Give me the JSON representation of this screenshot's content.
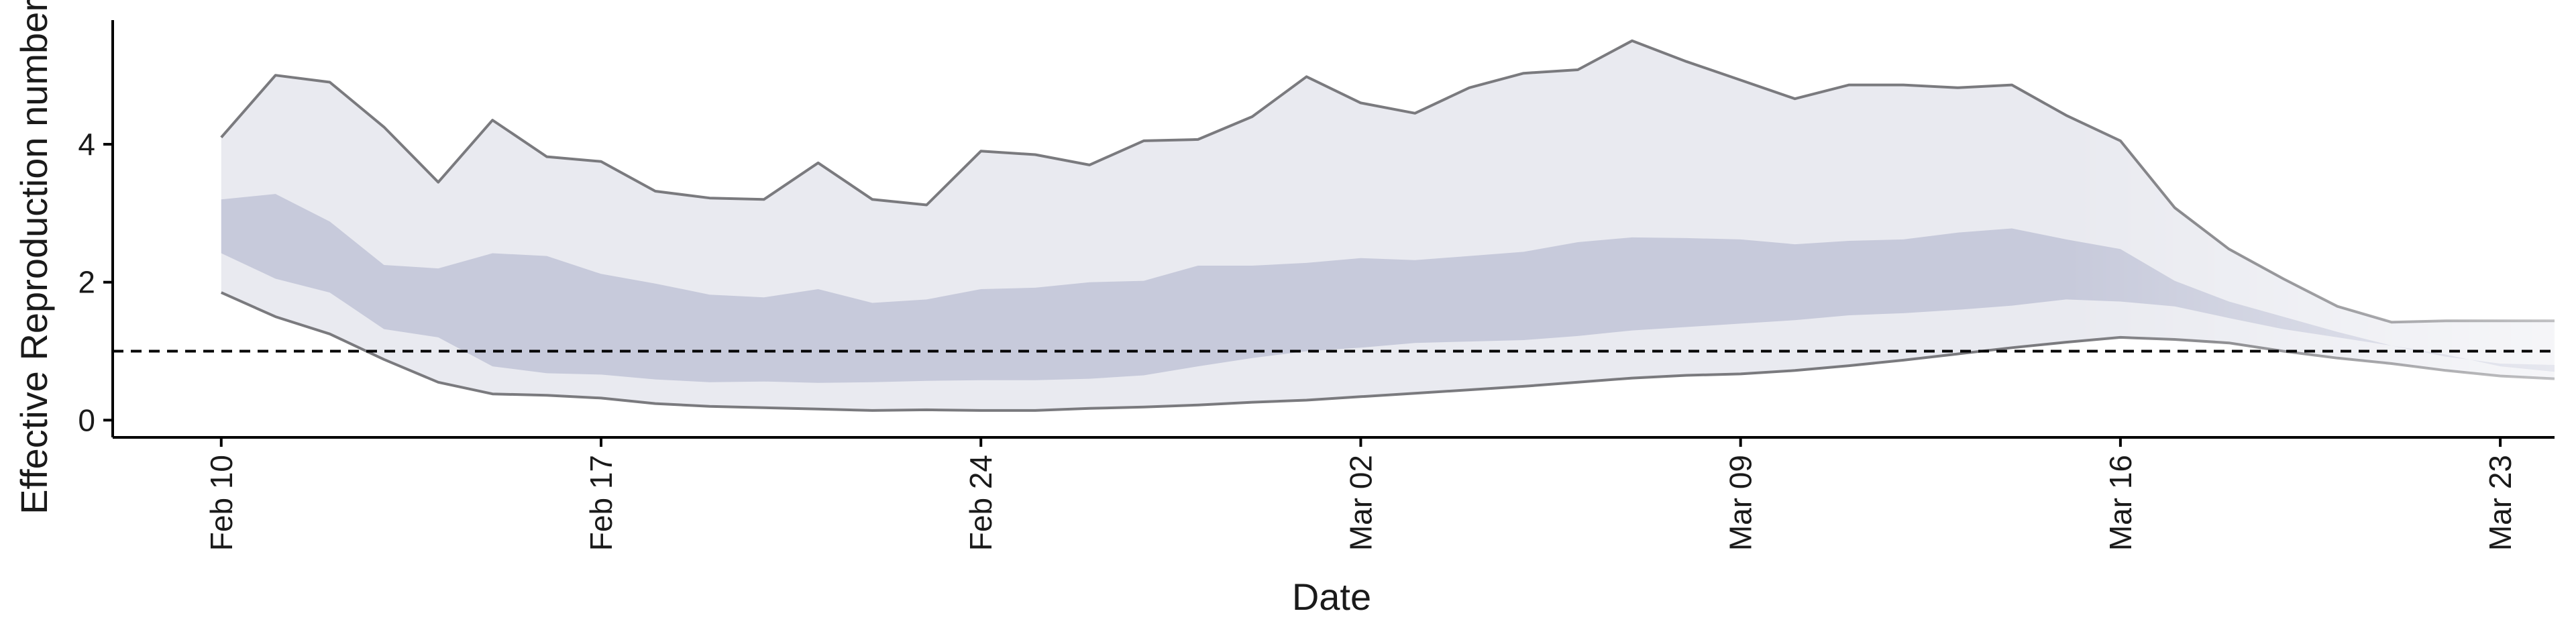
{
  "chart_data": {
    "type": "area",
    "xlabel": "Date",
    "ylabel": "Effective Reproduction number",
    "x_ticks": [
      "Feb 10",
      "Feb 17",
      "Feb 24",
      "Mar 02",
      "Mar 09",
      "Mar 16",
      "Mar 23"
    ],
    "y_ticks": [
      "0",
      "2",
      "4"
    ],
    "xlim": [
      "2020-02-08",
      "2020-03-24"
    ],
    "ylim": [
      -0.25,
      5.8
    ],
    "reference_line": 1,
    "start_date": "2020-02-10",
    "band_colors": {
      "outer": "#e9eaf0",
      "inner": "#c7cadb",
      "line": "#7a7a7e"
    },
    "series": [
      {
        "name": "lower_90",
        "values": [
          1.85,
          1.5,
          1.25,
          0.88,
          0.55,
          0.38,
          0.36,
          0.32,
          0.24,
          0.2,
          0.18,
          0.16,
          0.14,
          0.15,
          0.14,
          0.14,
          0.17,
          0.19,
          0.22,
          0.26,
          0.29,
          0.34,
          0.39,
          0.44,
          0.49,
          0.55,
          0.61,
          0.65,
          0.67,
          0.72,
          0.79,
          0.87,
          0.96,
          1.05,
          1.13,
          1.2,
          1.17,
          1.12,
          1.0,
          0.9,
          0.82,
          0.72,
          0.64,
          0.6
        ]
      },
      {
        "name": "lower_50",
        "values": [
          2.42,
          2.05,
          1.85,
          1.32,
          1.2,
          0.78,
          0.68,
          0.66,
          0.59,
          0.55,
          0.56,
          0.54,
          0.55,
          0.57,
          0.58,
          0.58,
          0.6,
          0.65,
          0.78,
          0.9,
          1.0,
          1.05,
          1.12,
          1.14,
          1.16,
          1.22,
          1.3,
          1.35,
          1.4,
          1.45,
          1.52,
          1.55,
          1.6,
          1.66,
          1.75,
          1.72,
          1.65,
          1.48,
          1.32,
          1.2,
          1.08,
          0.95,
          0.78,
          0.7
        ]
      },
      {
        "name": "upper_50",
        "values": [
          3.2,
          3.28,
          2.88,
          2.25,
          2.2,
          2.42,
          2.38,
          2.12,
          1.98,
          1.82,
          1.78,
          1.9,
          1.7,
          1.75,
          1.9,
          1.92,
          2.0,
          2.02,
          2.24,
          2.24,
          2.28,
          2.35,
          2.32,
          2.38,
          2.44,
          2.58,
          2.65,
          2.64,
          2.62,
          2.55,
          2.6,
          2.62,
          2.72,
          2.78,
          2.62,
          2.48,
          2.02,
          1.72,
          1.5,
          1.28,
          1.08,
          0.92,
          0.82,
          0.8
        ]
      },
      {
        "name": "upper_90",
        "values": [
          4.1,
          5.0,
          4.9,
          4.25,
          3.45,
          4.35,
          3.82,
          3.75,
          3.32,
          3.22,
          3.2,
          3.73,
          3.2,
          3.12,
          3.9,
          3.85,
          3.7,
          4.05,
          4.07,
          4.4,
          4.98,
          4.6,
          4.45,
          4.82,
          5.03,
          5.08,
          5.5,
          5.2,
          4.93,
          4.66,
          4.86,
          4.86,
          4.82,
          4.86,
          4.42,
          4.05,
          3.08,
          2.48,
          2.05,
          1.65,
          1.42,
          1.44,
          1.44,
          1.44
        ]
      }
    ]
  }
}
